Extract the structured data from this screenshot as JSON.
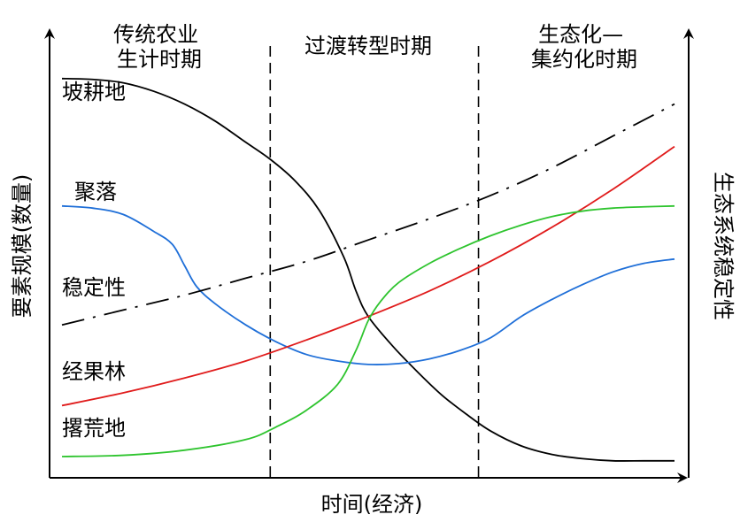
{
  "chart_data": {
    "type": "line",
    "xlabel": "时间(经济)",
    "ylabel_left": "要素规模(数量)",
    "ylabel_right": "生态系统稳定性",
    "periods": [
      {
        "label_lines": [
          "传统农业",
          "生计时期"
        ]
      },
      {
        "label_lines": [
          "过渡转型时期"
        ]
      },
      {
        "label_lines": [
          "生态化—",
          "集约化时期"
        ]
      }
    ],
    "xlim": [
      0,
      100
    ],
    "ylim": [
      0,
      100
    ],
    "period_boundaries": [
      34,
      68
    ],
    "series": [
      {
        "name": "坡耕地",
        "color": "#000000",
        "style": "solid",
        "x": [
          0,
          5,
          10,
          15,
          20,
          25,
          30,
          34,
          38,
          42,
          46,
          48,
          50,
          54,
          58,
          62,
          66,
          70,
          75,
          80,
          85,
          90,
          95,
          100
        ],
        "y": [
          94,
          93.8,
          93,
          91,
          88,
          84,
          79,
          75,
          70,
          63,
          52,
          44,
          38,
          31,
          25,
          19.5,
          15,
          11,
          7.5,
          5.5,
          4.5,
          4,
          4,
          4
        ]
      },
      {
        "name": "聚落",
        "color": "#1f6fd8",
        "style": "solid",
        "x": [
          0,
          5,
          10,
          15,
          18,
          20,
          22,
          25,
          30,
          35,
          40,
          45,
          50,
          55,
          60,
          65,
          70,
          75,
          80,
          85,
          90,
          95,
          100
        ],
        "y": [
          64,
          63.5,
          62,
          58,
          55,
          50,
          45,
          41,
          36,
          32,
          29,
          27.5,
          26.7,
          26.9,
          28,
          30,
          33,
          38,
          42,
          45.5,
          48.5,
          50.5,
          51.5
        ]
      },
      {
        "name": "稳定性",
        "color": "#000000",
        "style": "dashdot",
        "x": [
          0,
          10,
          20,
          30,
          40,
          50,
          60,
          70,
          80,
          90,
          100
        ],
        "y": [
          36,
          39.5,
          43,
          47,
          51,
          56,
          61,
          66.5,
          73,
          80.5,
          88
        ]
      },
      {
        "name": "经果林",
        "color": "#e01b1b",
        "style": "solid",
        "x": [
          0,
          10,
          20,
          30,
          40,
          50,
          60,
          70,
          80,
          90,
          100
        ],
        "y": [
          17,
          20,
          23.5,
          27.5,
          32.5,
          38,
          44,
          51,
          59,
          68,
          78
        ]
      },
      {
        "name": "撂荒地",
        "color": "#2ec42e",
        "style": "solid",
        "x": [
          0,
          10,
          20,
          30,
          35,
          40,
          45,
          48,
          50,
          52,
          55,
          60,
          65,
          70,
          75,
          80,
          85,
          90,
          95,
          100
        ],
        "y": [
          5,
          5.3,
          6.5,
          9,
          12,
          16,
          22,
          30,
          37,
          41.5,
          46,
          50.5,
          54,
          57,
          59.5,
          61.5,
          62.8,
          63.5,
          63.8,
          64
        ]
      }
    ]
  }
}
